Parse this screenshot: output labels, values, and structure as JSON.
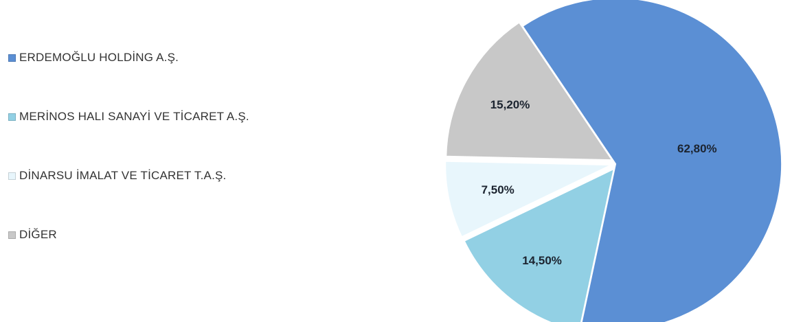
{
  "chart_data": {
    "type": "pie",
    "title": "",
    "categories": [
      "ERDEMOĞLU HOLDİNG A.Ş.",
      "MERİNOS HALI SANAYİ VE TİCARET A.Ş.",
      "DİNARSU İMALAT VE TİCARET T.A.Ş.",
      "DİĞER"
    ],
    "values": [
      62.8,
      14.5,
      7.5,
      15.2
    ],
    "value_labels": [
      "62,80%",
      "14,50%",
      "7,50%",
      "15,20%"
    ],
    "colors": [
      "#5b8fd4",
      "#92d0e4",
      "#e8f6fc",
      "#c8c8c8"
    ],
    "exploded": true,
    "legend_position": "left"
  }
}
